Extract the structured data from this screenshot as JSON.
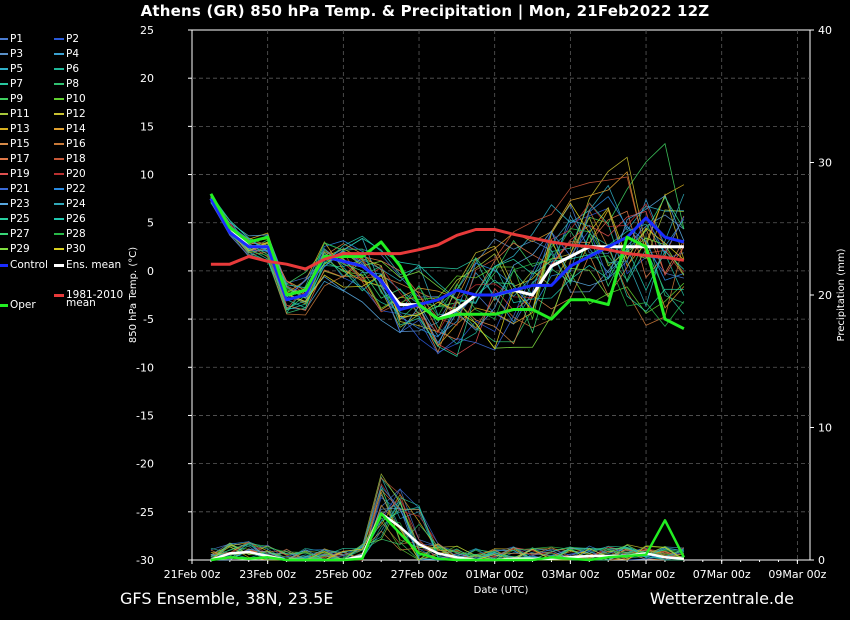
{
  "header": {
    "title": "Athens  (GR)  850 hPa Temp. & Precipitation | Mon, 21Feb2022 12Z"
  },
  "footer": {
    "model": "GFS Ensemble, 38N, 23.5E",
    "site": "Wetterzentrale.de"
  },
  "legend": {
    "members": [
      {
        "label": "P1",
        "color": "#4a7bd0"
      },
      {
        "label": "P2",
        "color": "#2a5ad8"
      },
      {
        "label": "P3",
        "color": "#5a90c8"
      },
      {
        "label": "P4",
        "color": "#3aa0d0"
      },
      {
        "label": "P5",
        "color": "#30b0c8"
      },
      {
        "label": "P6",
        "color": "#20b89a"
      },
      {
        "label": "P7",
        "color": "#28c8a0"
      },
      {
        "label": "P8",
        "color": "#30c070"
      },
      {
        "label": "P9",
        "color": "#40d060"
      },
      {
        "label": "P10",
        "color": "#60d030"
      },
      {
        "label": "P11",
        "color": "#a8c83a"
      },
      {
        "label": "P12",
        "color": "#c8c030"
      },
      {
        "label": "P13",
        "color": "#d8b020"
      },
      {
        "label": "P14",
        "color": "#e0a030"
      },
      {
        "label": "P15",
        "color": "#d88a48"
      },
      {
        "label": "P16",
        "color": "#c87838"
      },
      {
        "label": "P17",
        "color": "#e07848"
      },
      {
        "label": "P18",
        "color": "#c85838"
      },
      {
        "label": "P19",
        "color": "#e05050"
      },
      {
        "label": "P20",
        "color": "#b83030"
      },
      {
        "label": "P21",
        "color": "#3a6ad8"
      },
      {
        "label": "P22",
        "color": "#2a8ae0"
      },
      {
        "label": "P23",
        "color": "#58a8e0"
      },
      {
        "label": "P24",
        "color": "#30a8b8"
      },
      {
        "label": "P25",
        "color": "#28d0a0"
      },
      {
        "label": "P26",
        "color": "#20c8b0"
      },
      {
        "label": "P27",
        "color": "#38d878"
      },
      {
        "label": "P28",
        "color": "#28b848"
      },
      {
        "label": "P29",
        "color": "#80e040"
      },
      {
        "label": "P30",
        "color": "#d8d020"
      }
    ],
    "control": {
      "label": "Control",
      "color": "#1a2cff"
    },
    "ens_mean": {
      "label": "Ens. mean",
      "color": "#ffffff"
    },
    "climate": {
      "label": "1981-2010 mean",
      "line1": "1981-2010",
      "line2": "mean",
      "color": "#e83a3a"
    },
    "oper": {
      "label": "Oper",
      "color": "#22ee22"
    }
  },
  "chart_data": {
    "type": "line",
    "title": "Athens  (GR)  850 hPa Temp. & Precipitation | Mon, 21Feb2022 12Z",
    "xlabel": "Date (UTC)",
    "ylabel": "850 hPa Temp. (°C)",
    "y2label": "Precipitation (mm)",
    "ylim": [
      -30,
      25
    ],
    "y2lim": [
      0,
      40
    ],
    "yticks": [
      25,
      20,
      15,
      10,
      5,
      0,
      -5,
      -10,
      -15,
      -20,
      -25,
      -30
    ],
    "y2ticks": [
      40,
      30,
      20,
      10,
      0
    ],
    "x_tick_labels": [
      "21Feb 00z",
      "23Feb 00z",
      "25Feb 00z",
      "27Feb 00z",
      "01Mar 00z",
      "03Mar 00z",
      "05Mar 00z",
      "07Mar 00z",
      "09Mar 00z"
    ],
    "x_tick_hours": [
      0,
      48,
      96,
      144,
      192,
      240,
      288,
      336,
      384
    ],
    "grid": true,
    "legend_position": "left",
    "series_x_start_hours": 12,
    "series_x_step_hours": 12,
    "series": [
      {
        "name": "Ens. mean",
        "values": [
          7.5,
          4.5,
          2.5,
          2.5,
          -2.5,
          -2.0,
          1.5,
          1.0,
          0.5,
          -1.0,
          -3.5,
          -3.5,
          -5.0,
          -4.0,
          -2.5,
          -2.5,
          -2.0,
          -2.5,
          0.5,
          1.5,
          2.5,
          2.5,
          2.5,
          2.5,
          2.5,
          2.5
        ]
      },
      {
        "name": "Control",
        "values": [
          7.5,
          4.0,
          2.5,
          2.5,
          -3.0,
          -2.5,
          1.5,
          1.0,
          0.5,
          -1.0,
          -4.0,
          -3.5,
          -3.0,
          -2.0,
          -2.5,
          -2.5,
          -2.0,
          -1.5,
          -1.5,
          0.5,
          1.5,
          2.5,
          3.5,
          5.5,
          3.5,
          3.0
        ]
      },
      {
        "name": "Oper",
        "values": [
          8.0,
          4.5,
          3.0,
          3.5,
          -2.5,
          -2.0,
          1.5,
          1.5,
          1.5,
          3.0,
          0.5,
          -3.5,
          -5.0,
          -4.5,
          -4.5,
          -4.5,
          -4.0,
          -4.0,
          -5.0,
          -3.0,
          -3.0,
          -3.5,
          3.5,
          2.5,
          -5.0,
          -6.0
        ]
      },
      {
        "name": "1981-2010 mean",
        "values": [
          0.7,
          0.7,
          1.5,
          1.0,
          0.7,
          0.2,
          1.2,
          1.8,
          1.8,
          1.8,
          1.8,
          2.2,
          2.7,
          3.7,
          4.3,
          4.3,
          3.8,
          3.4,
          3.0,
          2.7,
          2.5,
          2.2,
          1.8,
          1.6,
          1.4,
          1.1
        ]
      },
      {
        "name": "Ens. mean precipitation",
        "axis": "y2",
        "values": [
          0,
          0.5,
          0.6,
          0.3,
          0,
          0,
          0,
          0,
          0.3,
          3.5,
          2.5,
          1.2,
          0.5,
          0.2,
          0,
          0,
          0.1,
          0.1,
          0.1,
          0.2,
          0.3,
          0.3,
          0.3,
          0.5,
          0.2,
          0.1
        ]
      },
      {
        "name": "Oper precipitation",
        "axis": "y2",
        "values": [
          0,
          0.2,
          0.1,
          0.2,
          0,
          0,
          0,
          0,
          0.1,
          3.5,
          2.0,
          0.5,
          0.1,
          0,
          0,
          0,
          0,
          0,
          0.2,
          0.1,
          0,
          0.2,
          0.3,
          0.4,
          3.0,
          0.2
        ]
      }
    ]
  }
}
